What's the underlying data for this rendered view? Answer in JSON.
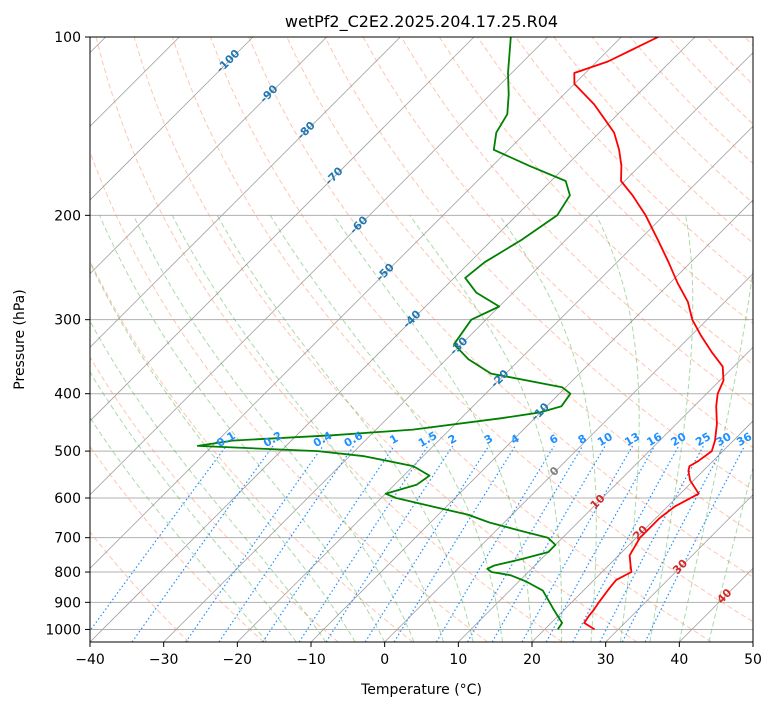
{
  "chart_data": {
    "type": "line",
    "title": "wetPf2_C2E2.2025.204.17.25.R04",
    "xlabel": "Temperature (°C)",
    "ylabel": "Pressure (hPa)",
    "xlim": [
      -40,
      50
    ],
    "ylim": [
      1050,
      100
    ],
    "y_scale": "log",
    "grid": true,
    "x_ticks": [
      "−40",
      "−30",
      "−20",
      "−10",
      "0",
      "10",
      "20",
      "30",
      "40",
      "50"
    ],
    "y_ticks": [
      "100",
      "200",
      "300",
      "400",
      "500",
      "600",
      "700",
      "800",
      "900",
      "1000"
    ],
    "isotherm_labels": [
      "-100",
      "-90",
      "-80",
      "-70",
      "-60",
      "-50",
      "-40",
      "-30",
      "-20",
      "-10",
      "0",
      "10",
      "20",
      "30",
      "40"
    ],
    "mixing_ratio_labels": [
      "0.1",
      "0.2",
      "0.4",
      "0.6",
      "1",
      "1.5",
      "2",
      "3",
      "4",
      "6",
      "8",
      "10",
      "13",
      "16",
      "20",
      "25",
      "30",
      "36"
    ],
    "colors": {
      "temperature": "#ff0000",
      "dewpoint": "#008000",
      "isotherm_label_cold": "#1f77b4",
      "isotherm_label_warm": "#d62728",
      "isotherm_label_zero": "#808080",
      "mixing_ratio": "#1e90ff",
      "dry_adiabat": "#ff7f50",
      "moist_adiabat": "#2ca02c",
      "skewed_isotherm": "#808080"
    },
    "series": [
      {
        "values": [
          [
            1000,
            26.8
          ],
          [
            975,
            24.5
          ],
          [
            950,
            24.2
          ],
          [
            925,
            24.0
          ],
          [
            900,
            23.7
          ],
          [
            850,
            23.2
          ],
          [
            825,
            23.0
          ],
          [
            800,
            24.0
          ],
          [
            780,
            23.0
          ],
          [
            750,
            21.5
          ],
          [
            700,
            20.5
          ],
          [
            650,
            20.5
          ],
          [
            620,
            21.0
          ],
          [
            590,
            22.5
          ],
          [
            560,
            19.5
          ],
          [
            540,
            18.0
          ],
          [
            530,
            17.5
          ],
          [
            520,
            18.0
          ],
          [
            500,
            18.5
          ],
          [
            480,
            17.5
          ],
          [
            450,
            15.5
          ],
          [
            420,
            13.0
          ],
          [
            400,
            11.5
          ],
          [
            380,
            10.5
          ],
          [
            360,
            8.5
          ],
          [
            340,
            5.0
          ],
          [
            320,
            1.5
          ],
          [
            300,
            -2.0
          ],
          [
            280,
            -5.0
          ],
          [
            260,
            -9.0
          ],
          [
            240,
            -13.0
          ],
          [
            220,
            -17.5
          ],
          [
            200,
            -22.5
          ],
          [
            185,
            -27.0
          ],
          [
            175,
            -30.5
          ],
          [
            165,
            -32.5
          ],
          [
            155,
            -35.0
          ],
          [
            145,
            -38.0
          ],
          [
            130,
            -44.5
          ],
          [
            120,
            -50.0
          ],
          [
            115,
            -51.5
          ],
          [
            110,
            -48.5
          ],
          [
            100,
            -45.0
          ]
        ]
      },
      {
        "values": [
          [
            1000,
            21.8
          ],
          [
            975,
            21.5
          ],
          [
            950,
            20.0
          ],
          [
            925,
            18.5
          ],
          [
            900,
            17.0
          ],
          [
            860,
            14.5
          ],
          [
            830,
            11.0
          ],
          [
            810,
            8.0
          ],
          [
            800,
            5.0
          ],
          [
            790,
            4.0
          ],
          [
            780,
            4.5
          ],
          [
            760,
            7.5
          ],
          [
            740,
            10.0
          ],
          [
            720,
            10.0
          ],
          [
            700,
            8.0
          ],
          [
            680,
            3.0
          ],
          [
            660,
            -2.0
          ],
          [
            640,
            -6.0
          ],
          [
            620,
            -12.0
          ],
          [
            600,
            -18.0
          ],
          [
            590,
            -20.0
          ],
          [
            570,
            -17.0
          ],
          [
            550,
            -16.5
          ],
          [
            530,
            -20.0
          ],
          [
            510,
            -28.0
          ],
          [
            500,
            -35.0
          ],
          [
            490,
            -52.0
          ],
          [
            480,
            -48.0
          ],
          [
            470,
            -35.0
          ],
          [
            460,
            -25.0
          ],
          [
            440,
            -14.5
          ],
          [
            430,
            -10.0
          ],
          [
            420,
            -8.0
          ],
          [
            400,
            -8.5
          ],
          [
            390,
            -10.5
          ],
          [
            370,
            -22.0
          ],
          [
            350,
            -27.0
          ],
          [
            330,
            -31.0
          ],
          [
            300,
            -32.0
          ],
          [
            285,
            -30.0
          ],
          [
            270,
            -35.0
          ],
          [
            255,
            -38.5
          ],
          [
            240,
            -38.0
          ],
          [
            220,
            -36.0
          ],
          [
            200,
            -34.5
          ],
          [
            185,
            -35.5
          ],
          [
            175,
            -38.0
          ],
          [
            165,
            -45.0
          ],
          [
            155,
            -52.0
          ],
          [
            145,
            -54.0
          ],
          [
            135,
            -55.0
          ],
          [
            125,
            -57.5
          ],
          [
            115,
            -60.5
          ],
          [
            100,
            -65.0
          ]
        ]
      }
    ]
  }
}
